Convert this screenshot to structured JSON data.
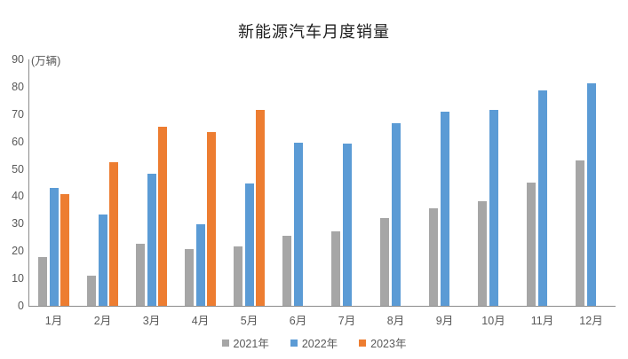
{
  "chart_data": {
    "type": "bar",
    "title": "新能源汽车月度销量",
    "unit_label": "(万辆)",
    "categories": [
      "1月",
      "2月",
      "3月",
      "4月",
      "5月",
      "6月",
      "7月",
      "8月",
      "9月",
      "10月",
      "11月",
      "12月"
    ],
    "series": [
      {
        "name": "2021年",
        "color": "#a6a6a6",
        "values": [
          17.9,
          11.0,
          22.6,
          20.6,
          21.7,
          25.6,
          27.1,
          32.1,
          35.7,
          38.3,
          45.0,
          53.1
        ]
      },
      {
        "name": "2022年",
        "color": "#5b9bd5",
        "values": [
          43.1,
          33.4,
          48.4,
          29.9,
          44.7,
          59.6,
          59.3,
          66.6,
          70.8,
          71.4,
          78.6,
          81.4
        ]
      },
      {
        "name": "2023年",
        "color": "#ed7d31",
        "values": [
          40.8,
          52.5,
          65.3,
          63.6,
          71.7,
          null,
          null,
          null,
          null,
          null,
          null,
          null
        ]
      }
    ],
    "xlabel": "",
    "ylabel": "",
    "ylim": [
      0,
      90
    ],
    "y_ticks": [
      0,
      10,
      20,
      30,
      40,
      50,
      60,
      70,
      80,
      90
    ],
    "grid": false,
    "legend_position": "bottom",
    "axis_color": "#8c8c8c",
    "text_color": "#595959"
  }
}
